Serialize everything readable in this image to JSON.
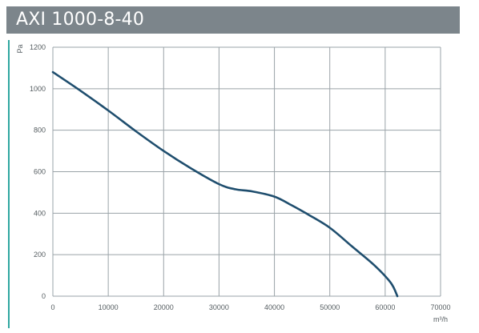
{
  "header": {
    "title": "AXI 1000-8-40"
  },
  "colors": {
    "header_bg": "#7c858b",
    "accent": "#2fa7a0",
    "curve": "#1f4e6e",
    "grid": "#9aa3a8"
  },
  "chart_data": {
    "type": "line",
    "title": "",
    "xlabel": "m³/h",
    "ylabel": "Pa",
    "xlim": [
      0,
      70000
    ],
    "ylim": [
      0,
      1200
    ],
    "grid": true,
    "x_ticks": [
      "0",
      "10000",
      "20000",
      "30000",
      "40000",
      "50000",
      "60000",
      "70000"
    ],
    "y_ticks": [
      "0",
      "200",
      "400",
      "600",
      "800",
      "1000",
      "1200"
    ],
    "series": [
      {
        "x": [
          0,
          5000,
          10000,
          15000,
          20000,
          25000,
          30000,
          33000,
          36000,
          40000,
          43000,
          46000,
          50000,
          54000,
          58000,
          61000,
          62200
        ],
        "y": [
          1080,
          990,
          895,
          795,
          700,
          615,
          540,
          515,
          505,
          480,
          440,
          395,
          330,
          240,
          150,
          65,
          0
        ]
      }
    ]
  }
}
